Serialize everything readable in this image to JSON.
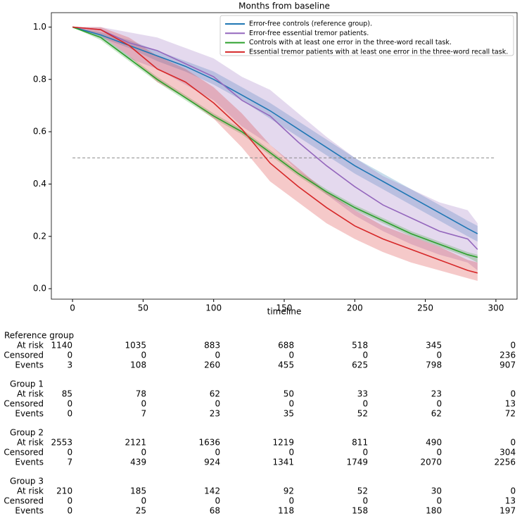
{
  "chart_data": {
    "type": "line",
    "title": "Months from baseline",
    "x_label": "timeline",
    "x": [
      0,
      20,
      40,
      60,
      80,
      100,
      120,
      140,
      160,
      180,
      200,
      220,
      240,
      260,
      280,
      287
    ],
    "series": [
      {
        "name": "Error-free controls (reference group).",
        "color": "#1f77b4",
        "values": [
          1.0,
          0.97,
          0.93,
          0.89,
          0.85,
          0.8,
          0.74,
          0.68,
          0.61,
          0.54,
          0.47,
          0.41,
          0.35,
          0.29,
          0.23,
          0.21
        ],
        "ci_lower": [
          1.0,
          0.96,
          0.92,
          0.87,
          0.83,
          0.78,
          0.72,
          0.65,
          0.58,
          0.51,
          0.44,
          0.38,
          0.32,
          0.26,
          0.2,
          0.18
        ],
        "ci_upper": [
          1.0,
          0.98,
          0.95,
          0.91,
          0.87,
          0.83,
          0.77,
          0.71,
          0.64,
          0.57,
          0.5,
          0.44,
          0.38,
          0.32,
          0.26,
          0.24
        ]
      },
      {
        "name": "Error-free essential tremor patients.",
        "color": "#9467bd",
        "values": [
          1.0,
          0.99,
          0.94,
          0.91,
          0.86,
          0.81,
          0.72,
          0.66,
          0.56,
          0.47,
          0.39,
          0.32,
          0.27,
          0.22,
          0.19,
          0.15
        ],
        "ci_lower": [
          1.0,
          0.96,
          0.88,
          0.84,
          0.78,
          0.72,
          0.62,
          0.55,
          0.45,
          0.36,
          0.28,
          0.22,
          0.17,
          0.13,
          0.1,
          0.07
        ],
        "ci_upper": [
          1.0,
          1.0,
          0.98,
          0.96,
          0.92,
          0.88,
          0.81,
          0.76,
          0.67,
          0.58,
          0.5,
          0.43,
          0.38,
          0.33,
          0.3,
          0.25
        ]
      },
      {
        "name": "Controls with at least one error in the three-word recall task.",
        "color": "#2ca02c",
        "values": [
          1.0,
          0.96,
          0.88,
          0.8,
          0.73,
          0.66,
          0.6,
          0.52,
          0.44,
          0.37,
          0.31,
          0.26,
          0.21,
          0.17,
          0.13,
          0.12
        ],
        "ci_lower": [
          1.0,
          0.95,
          0.87,
          0.79,
          0.72,
          0.65,
          0.59,
          0.51,
          0.43,
          0.36,
          0.3,
          0.25,
          0.2,
          0.16,
          0.12,
          0.1
        ],
        "ci_upper": [
          1.0,
          0.97,
          0.89,
          0.81,
          0.74,
          0.67,
          0.61,
          0.53,
          0.45,
          0.38,
          0.32,
          0.27,
          0.22,
          0.18,
          0.14,
          0.13
        ]
      },
      {
        "name": "Essential tremor patients with at least one error in the three-word recall task.",
        "color": "#d62728",
        "values": [
          1.0,
          0.99,
          0.93,
          0.84,
          0.79,
          0.71,
          0.61,
          0.48,
          0.39,
          0.31,
          0.24,
          0.19,
          0.15,
          0.11,
          0.07,
          0.06
        ],
        "ci_lower": [
          1.0,
          0.97,
          0.89,
          0.79,
          0.73,
          0.65,
          0.54,
          0.41,
          0.33,
          0.25,
          0.19,
          0.14,
          0.1,
          0.07,
          0.04,
          0.03
        ],
        "ci_upper": [
          1.0,
          1.0,
          0.96,
          0.89,
          0.84,
          0.77,
          0.67,
          0.55,
          0.46,
          0.37,
          0.3,
          0.24,
          0.2,
          0.16,
          0.11,
          0.1
        ]
      }
    ],
    "reference_line": 0.5,
    "xlim": [
      -15,
      315
    ],
    "xticks": [
      0,
      50,
      100,
      150,
      200,
      250,
      300
    ],
    "ylim": [
      -0.04,
      1.055
    ],
    "yticks": [
      {
        "value": 0,
        "label": "0.0"
      },
      {
        "value": 0.2,
        "label": "0.2"
      },
      {
        "value": 0.4,
        "label": "0.4"
      },
      {
        "value": 0.6,
        "label": "0.6"
      },
      {
        "value": 0.8,
        "label": "0.8"
      },
      {
        "value": 1,
        "label": "1.0"
      }
    ],
    "legend": "upper right",
    "risk_table": [
      {
        "name": "Reference group",
        "rows": [
          {
            "label": "At risk",
            "values": [
              1140,
              1035,
              883,
              688,
              518,
              345,
              0
            ]
          },
          {
            "label": "Censored",
            "values": [
              0,
              0,
              0,
              0,
              0,
              0,
              236
            ]
          },
          {
            "label": "Events",
            "values": [
              3,
              108,
              260,
              455,
              625,
              798,
              907
            ]
          }
        ]
      },
      {
        "name": "Group 1",
        "rows": [
          {
            "label": "At risk",
            "values": [
              85,
              78,
              62,
              50,
              33,
              23,
              0
            ]
          },
          {
            "label": "Censored",
            "values": [
              0,
              0,
              0,
              0,
              0,
              0,
              13
            ]
          },
          {
            "label": "Events",
            "values": [
              0,
              7,
              23,
              35,
              52,
              62,
              72
            ]
          }
        ]
      },
      {
        "name": "Group 2",
        "rows": [
          {
            "label": "At risk",
            "values": [
              2553,
              2121,
              1636,
              1219,
              811,
              490,
              0
            ]
          },
          {
            "label": "Censored",
            "values": [
              0,
              0,
              0,
              0,
              0,
              0,
              304
            ]
          },
          {
            "label": "Events",
            "values": [
              7,
              439,
              924,
              1341,
              1749,
              2070,
              2256
            ]
          }
        ]
      },
      {
        "name": "Group 3",
        "rows": [
          {
            "label": "At risk",
            "values": [
              210,
              185,
              142,
              92,
              52,
              30,
              0
            ]
          },
          {
            "label": "Censored",
            "values": [
              0,
              0,
              0,
              0,
              0,
              0,
              13
            ]
          },
          {
            "label": "Events",
            "values": [
              0,
              25,
              68,
              118,
              158,
              180,
              197
            ]
          }
        ]
      }
    ]
  }
}
